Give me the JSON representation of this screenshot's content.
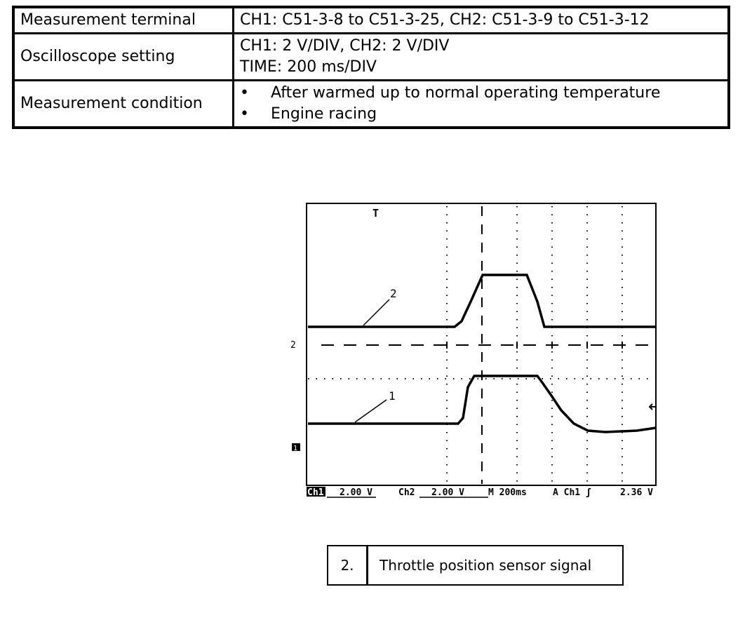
{
  "table": {
    "rows": [
      {
        "label": "Measurement terminal",
        "lines": [
          "CH1: C51-3-8 to C51-3-25, CH2: C51-3-9 to C51-3-12"
        ]
      },
      {
        "label": "Oscilloscope setting",
        "lines": [
          "CH1: 2 V/DIV, CH2: 2 V/DIV",
          "TIME: 200 ms/DIV"
        ]
      },
      {
        "label": "Measurement condition",
        "bullets": [
          "After warmed up to normal operating temperature",
          "Engine racing"
        ]
      }
    ],
    "bullet_char": "•"
  },
  "scope": {
    "trace_labels": {
      "ch2": "2",
      "ch1": "1"
    },
    "ground_markers": {
      "ch2": "2",
      "ch1": "1"
    },
    "trigger_marker": "T",
    "status_bar": {
      "ch1": "Ch1",
      "ch1_scale": "2.00 V",
      "ch2": "Ch2",
      "ch2_scale": "2.00 V",
      "time": "M 200ms",
      "trigger": "A  Ch1  ʃ",
      "trigger_level": "2.36 V"
    }
  },
  "caption": {
    "number": "2.",
    "text": "Throttle position sensor signal"
  }
}
